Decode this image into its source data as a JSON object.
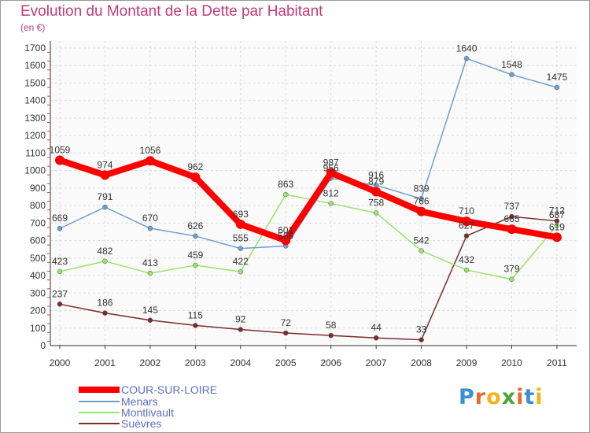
{
  "header": {
    "title": "Evolution du Montant de la Dette par Habitant",
    "unit": "(en €)"
  },
  "logo": {
    "text": "Proxiti",
    "colors": [
      "#3a8fd6",
      "#e8692a",
      "#f2b21a",
      "#49a63c",
      "#e8692a",
      "#3a8fd6",
      "#f2b21a"
    ]
  },
  "chart_data": {
    "type": "line",
    "title": "Evolution du Montant de la Dette par Habitant",
    "subtitle": "(en €)",
    "xlabel": "",
    "ylabel": "",
    "x": [
      "2000",
      "2001",
      "2002",
      "2003",
      "2004",
      "2005",
      "2006",
      "2007",
      "2008",
      "2009",
      "2010",
      "2011"
    ],
    "ylim": [
      0,
      1700
    ],
    "yticks": [
      0,
      100,
      200,
      300,
      400,
      500,
      600,
      700,
      800,
      900,
      1000,
      1100,
      1200,
      1300,
      1400,
      1500,
      1600,
      1700
    ],
    "grid": true,
    "legend_position": "bottom-left",
    "series": [
      {
        "name": "COUR-SUR-LOIRE",
        "color": "#ff0000",
        "values": [
          1059,
          974,
          1056,
          962,
          693,
          601,
          987,
          879,
          766,
          710,
          665,
          619
        ]
      },
      {
        "name": "Menars",
        "color": "#6b9fd2",
        "values": [
          669,
          791,
          670,
          626,
          555,
          569,
          956,
          916,
          839,
          1640,
          1548,
          1475
        ]
      },
      {
        "name": "Montlivault",
        "color": "#99e46a",
        "values": [
          423,
          482,
          413,
          459,
          422,
          863,
          812,
          758,
          542,
          432,
          379,
          687
        ]
      },
      {
        "name": "Suèvres",
        "color": "#7b2c2c",
        "values": [
          237,
          186,
          145,
          115,
          92,
          72,
          58,
          44,
          33,
          627,
          737,
          712
        ]
      }
    ],
    "labels": {
      "COUR-SUR-LOIRE": [
        "1059",
        "974",
        "1056",
        "962",
        "693",
        "601",
        "987",
        "879",
        "766",
        "710",
        "665",
        "619"
      ],
      "Menars": [
        "669",
        "791",
        "670",
        "626",
        "555",
        "569",
        "956",
        "916",
        "839",
        "1640",
        "1548",
        "1475"
      ],
      "Montlivault": [
        "423",
        "482",
        "413",
        "459",
        "422",
        "863",
        "812",
        "758",
        "542",
        "432",
        "379",
        "687"
      ],
      "Suèvres": [
        "237",
        "186",
        "145",
        "115",
        "92",
        "72",
        "58",
        "44",
        "33",
        "627",
        "737",
        "712"
      ]
    }
  }
}
